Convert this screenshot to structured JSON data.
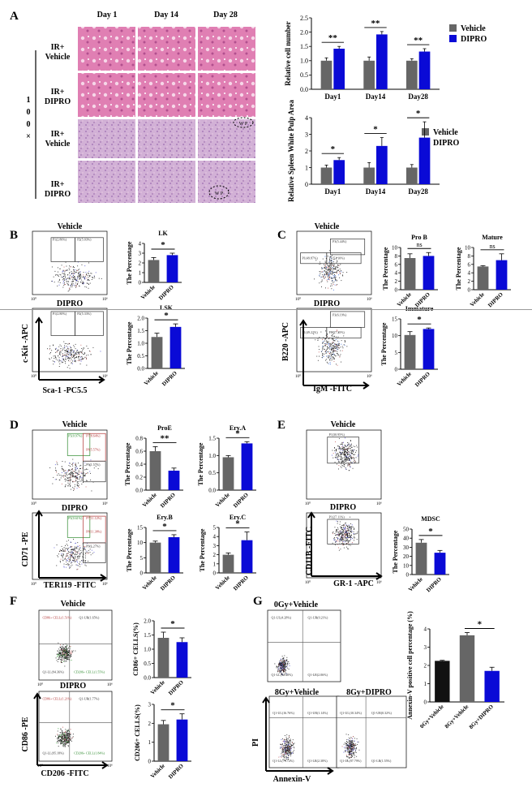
{
  "colors": {
    "vehicle": "#666666",
    "dipro": "#0a0ad6",
    "black": "#111111",
    "he_bone": "#e48ab8",
    "he_spleen": "#c9a3cf"
  },
  "panels": {
    "A": "A",
    "B": "B",
    "C": "C",
    "D": "D",
    "E": "E",
    "F": "F",
    "G": "G"
  },
  "panel_a": {
    "col_headers": [
      "Day 1",
      "Day 14",
      "Day 28"
    ],
    "row_labels": [
      [
        "IR+",
        "Vehicle"
      ],
      [
        "IR+",
        "DIPRO"
      ],
      [
        "IR+",
        "Vehicle"
      ],
      [
        "IR+",
        "DIPRO"
      ]
    ],
    "magnification": [
      "1",
      "0",
      "0",
      "×"
    ],
    "wp_label": "W P"
  },
  "legend": {
    "vehicle": "Vehicle",
    "dipro": "DIPRO"
  },
  "sig": {
    "two": "**",
    "one": "*",
    "ns": "ns"
  },
  "x_vd": [
    "Vehicle",
    "DIPRO"
  ],
  "flow": {
    "B": {
      "top": "Vehicle",
      "bottom": "DIPRO",
      "ylab": "c-Kit -APC",
      "xlab": "Sca-1 -PC5.5",
      "gates_top": [
        "P1(2.86%)",
        "P2(5.03%)"
      ],
      "gates_bottom": [
        "P1(2.80%)",
        "P2(5.33%)"
      ]
    },
    "C": {
      "top": "Vehicle",
      "bottom": "DIPRO",
      "ylab": "B220 -APC",
      "xlab": "IgM -FITC",
      "gates_top": [
        "P3(5.44%)",
        "P1(49.87%)",
        "P1(51.10%)"
      ],
      "gates_bottom": [
        "P3(6.19%)",
        "P1(49.22%)",
        "P1(57.35%)"
      ]
    },
    "D": {
      "top": "Vehicle",
      "bottom": "DIPRO",
      "ylab": "CD71 -PE",
      "xlab": "TER119 -FITC",
      "gates_top": [
        "P5(0.97%)",
        "P7(8.64%)",
        "P8(5.57%)",
        "P9(1.57%)"
      ],
      "gates_bottom": [
        "P5(0.61%)",
        "P7(11.12%)",
        "P8(11.38%)",
        "P9(1.27%)"
      ]
    },
    "E": {
      "top": "Vehicle",
      "bottom": "DIPRO",
      "ylab": "CD11B -FITC",
      "xlab": "GR-1 -APC",
      "gates_top": [
        "P1(30.95%)"
      ],
      "gates_bottom": [
        "P1(27.11%)"
      ]
    },
    "F": {
      "top": "Vehicle",
      "bottom": "DIPRO",
      "ylab": "CD86 -PE",
      "xlab": "CD206 -FITC",
      "gates_top": [
        "CD86+ CELL(1.51%)",
        "Q1-UR(1.65%)",
        "Q1-LL(94.36%)",
        "CD206+ CELL(1.55%)"
      ],
      "gates_bottom": [
        "CD86+ CELL(1.21%)",
        "Q1-UR(1.77%)",
        "Q1-LL(95.18%)",
        "CD206+ CELL(1.84%)"
      ]
    },
    "G": {
      "plot_labels": [
        "0Gy+Vehicle",
        "8Gy+Vehicle",
        "8Gy+DIPRO"
      ],
      "ylab": "PI",
      "xlab": "Annexin-V",
      "quad_top": [
        "Q1-UL(4.28%)",
        "Q1-UR(0.21%)",
        "Q1-LL(93.48%)",
        "Q1-LR(2.06%)"
      ],
      "quad_mid": [
        "Q1-UL(16.76%)",
        "Q1-UR(1.14%)",
        "Q1-LL(79.72%)",
        "Q1-LR(2.38%)"
      ],
      "quad_right": [
        "Q1-UL(10.34%)",
        "Q1-UR(0.32%)",
        "Q1-LL(87.79%)",
        "Q1-LR(1.55%)"
      ]
    },
    "axis_tick": [
      "10⁰",
      "10⁶"
    ]
  },
  "chart_data": [
    {
      "id": "A1",
      "type": "bar",
      "categories": [
        "Day1",
        "Day14",
        "Day28"
      ],
      "series": [
        {
          "name": "Vehicle",
          "values": [
            1.0,
            1.0,
            1.0
          ]
        },
        {
          "name": "DIPRO",
          "values": [
            1.42,
            1.92,
            1.32
          ]
        }
      ],
      "errors": [
        [
          0.1,
          0.13,
          0.07
        ],
        [
          0.08,
          0.1,
          0.1
        ]
      ],
      "ylabel": "Relative cell number",
      "ylim": [
        0,
        2.5
      ],
      "yticks": [
        0.0,
        0.5,
        1.0,
        1.5,
        2.0,
        2.5
      ],
      "sig": [
        "**",
        "**",
        "**"
      ],
      "legend": "top-right"
    },
    {
      "id": "A2",
      "type": "bar",
      "categories": [
        "Day1",
        "Day14",
        "Day28"
      ],
      "series": [
        {
          "name": "Vehicle",
          "values": [
            1.0,
            1.0,
            1.0
          ]
        },
        {
          "name": "DIPRO",
          "values": [
            1.45,
            2.3,
            2.8
          ]
        }
      ],
      "errors": [
        [
          0.15,
          0.3,
          0.18
        ],
        [
          0.15,
          0.5,
          0.95
        ]
      ],
      "ylabel": "Relative Spleen White Pulp Area",
      "ylim": [
        0,
        4
      ],
      "yticks": [
        0,
        1,
        2,
        3,
        4
      ],
      "sig": [
        "*",
        "*",
        "*"
      ],
      "legend": "top-right"
    },
    {
      "id": "B1",
      "type": "bar",
      "title": "LK",
      "categories": [
        "Vehicle",
        "DIPRO"
      ],
      "values": [
        2.3,
        2.8
      ],
      "errors": [
        0.25,
        0.2
      ],
      "ylabel": "The Percentage",
      "ylim": [
        0,
        4
      ],
      "yticks": [
        0,
        1,
        2,
        3,
        4
      ],
      "sig": "*"
    },
    {
      "id": "B2",
      "type": "bar",
      "title": "LSK",
      "categories": [
        "Vehicle",
        "DIPRO"
      ],
      "values": [
        1.25,
        1.65
      ],
      "errors": [
        0.15,
        0.12
      ],
      "ylabel": "The Percentage",
      "ylim": [
        0,
        2.0
      ],
      "yticks": [
        0.0,
        0.5,
        1.0,
        1.5,
        2.0
      ],
      "sig": "*"
    },
    {
      "id": "C1",
      "type": "bar",
      "title": "Pro B",
      "categories": [
        "Vehicle",
        "DIPRO"
      ],
      "values": [
        7.5,
        8.0
      ],
      "errors": [
        1.0,
        0.8
      ],
      "ylabel": "The Percentage",
      "ylim": [
        0,
        10
      ],
      "yticks": [
        0,
        2,
        4,
        6,
        8,
        10
      ],
      "sig": "ns"
    },
    {
      "id": "C2",
      "type": "bar",
      "title": "Mature",
      "categories": [
        "Vehicle",
        "DIPRO"
      ],
      "values": [
        5.5,
        7.0
      ],
      "errors": [
        0.2,
        1.5
      ],
      "ylabel": "The Percentage",
      "ylim": [
        0,
        10
      ],
      "yticks": [
        0,
        2,
        4,
        6,
        8,
        10
      ],
      "sig": "ns"
    },
    {
      "id": "C3",
      "type": "bar",
      "title": "Immature",
      "categories": [
        "Vehicle",
        "DIPRO"
      ],
      "values": [
        10.2,
        12.0
      ],
      "errors": [
        1.0,
        0.3
      ],
      "ylabel": "The Percentage",
      "ylim": [
        0,
        15
      ],
      "yticks": [
        0,
        5,
        10,
        15
      ],
      "sig": "*"
    },
    {
      "id": "D1",
      "type": "bar",
      "title": "ProE",
      "categories": [
        "Vehicle",
        "DIPRO"
      ],
      "values": [
        0.6,
        0.3
      ],
      "errors": [
        0.07,
        0.04
      ],
      "ylabel": "The Percentage",
      "ylim": [
        0,
        0.8
      ],
      "yticks": [
        0.0,
        0.2,
        0.4,
        0.6,
        0.8
      ],
      "sig": "**"
    },
    {
      "id": "D2",
      "type": "bar",
      "title": "Ery.A",
      "categories": [
        "Vehicle",
        "DIPRO"
      ],
      "values": [
        0.95,
        1.35
      ],
      "errors": [
        0.05,
        0.05
      ],
      "ylabel": "The Percentage",
      "ylim": [
        0,
        1.5
      ],
      "yticks": [
        0.0,
        0.5,
        1.0,
        1.5
      ],
      "sig": "*"
    },
    {
      "id": "D3",
      "type": "bar",
      "title": "Ery.B",
      "categories": [
        "Vehicle",
        "DIPRO"
      ],
      "values": [
        10.0,
        11.8
      ],
      "errors": [
        0.5,
        0.8
      ],
      "ylabel": "The Percentage",
      "ylim": [
        0,
        15
      ],
      "yticks": [
        0,
        5,
        10,
        15
      ],
      "sig": "*"
    },
    {
      "id": "D4",
      "type": "bar",
      "title": "Ery.C",
      "categories": [
        "Vehicle",
        "DIPRO"
      ],
      "values": [
        2.0,
        3.6
      ],
      "errors": [
        0.2,
        0.9
      ],
      "ylabel": "The Percentage",
      "ylim": [
        0,
        5
      ],
      "yticks": [
        0,
        1,
        2,
        3,
        4,
        5
      ],
      "sig": "*"
    },
    {
      "id": "E1",
      "type": "bar",
      "title": "MDSC",
      "categories": [
        "Vehicle",
        "DIPRO"
      ],
      "values": [
        35,
        24
      ],
      "errors": [
        3.5,
        2.5
      ],
      "ylabel": "The Percentage",
      "ylim": [
        0,
        50
      ],
      "yticks": [
        0,
        10,
        20,
        30,
        40,
        50
      ],
      "sig": "*"
    },
    {
      "id": "F1",
      "type": "bar",
      "categories": [
        "Vehicle",
        "DIPRO"
      ],
      "values": [
        1.4,
        1.25
      ],
      "errors": [
        0.2,
        0.15
      ],
      "ylabel": "CD86+ CELLS(%)",
      "ylim": [
        0,
        2.0
      ],
      "yticks": [
        0.0,
        0.5,
        1.0,
        1.5,
        2.0
      ],
      "sig": "*"
    },
    {
      "id": "F2",
      "type": "bar",
      "categories": [
        "Vehicle",
        "DIPRO"
      ],
      "values": [
        1.95,
        2.2
      ],
      "errors": [
        0.2,
        0.3
      ],
      "ylabel": "CD206+ CELLS(%)",
      "ylim": [
        0,
        3
      ],
      "yticks": [
        0,
        1,
        2,
        3
      ],
      "sig": "*"
    },
    {
      "id": "G1",
      "type": "bar",
      "categories": [
        "0Gy+Vehicle",
        "8Gy+Vehicle",
        "8Gy+DIPRO"
      ],
      "values": [
        2.25,
        3.65,
        1.7
      ],
      "errors": [
        0.03,
        0.15,
        0.2
      ],
      "ylabel": "Annexin-V positive cell percentage (%)",
      "ylim": [
        0,
        4
      ],
      "yticks": [
        0,
        1,
        2,
        3,
        4
      ],
      "sig": "*"
    }
  ]
}
